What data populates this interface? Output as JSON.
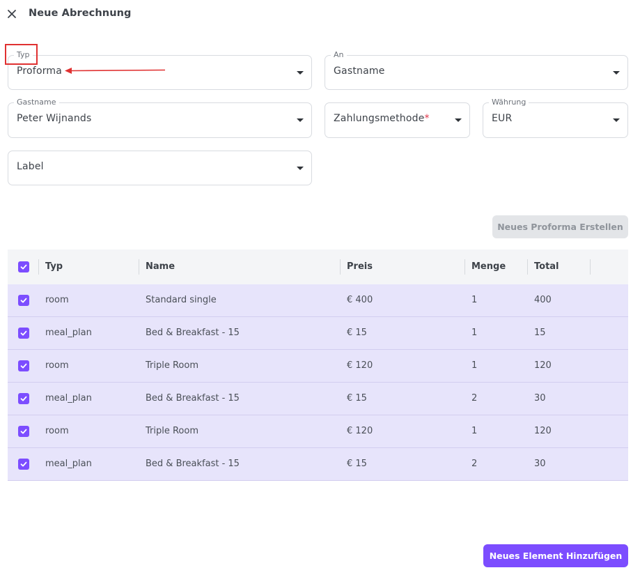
{
  "header": {
    "title": "Neue Abrechnung",
    "close_icon": "close-icon"
  },
  "form": {
    "typ": {
      "label": "Typ",
      "value": "Proforma"
    },
    "an": {
      "label": "An",
      "value": "Gastname"
    },
    "gastname": {
      "label": "Gastname",
      "value": "Peter Wijnands"
    },
    "zahlungsmethode": {
      "placeholder": "Zahlungsmethode",
      "required_mark": "*"
    },
    "waehrung": {
      "label": "Währung",
      "value": "EUR"
    },
    "label_field": {
      "placeholder": "Label"
    }
  },
  "actions": {
    "new_proforma": "Neues Proforma Erstellen",
    "add_element": "Neues Element Hinzufügen"
  },
  "table": {
    "columns": [
      "Typ",
      "Name",
      "Preis",
      "Menge",
      "Total"
    ],
    "rows": [
      {
        "typ": "room",
        "name": "Standard single",
        "preis": "€ 400",
        "menge": "1",
        "total": "400"
      },
      {
        "typ": "meal_plan",
        "name": "Bed & Breakfast - 15",
        "preis": "€ 15",
        "menge": "1",
        "total": "15"
      },
      {
        "typ": "room",
        "name": "Triple Room",
        "preis": "€ 120",
        "menge": "1",
        "total": "120"
      },
      {
        "typ": "meal_plan",
        "name": "Bed & Breakfast - 15",
        "preis": "€ 15",
        "menge": "2",
        "total": "30"
      },
      {
        "typ": "room",
        "name": "Triple Room",
        "preis": "€ 120",
        "menge": "1",
        "total": "120"
      },
      {
        "typ": "meal_plan",
        "name": "Bed & Breakfast - 15",
        "preis": "€ 15",
        "menge": "2",
        "total": "30"
      }
    ]
  },
  "colors": {
    "accent": "#7c4dff",
    "row_selected": "#e7e4fb",
    "annotation": "#e03131"
  }
}
